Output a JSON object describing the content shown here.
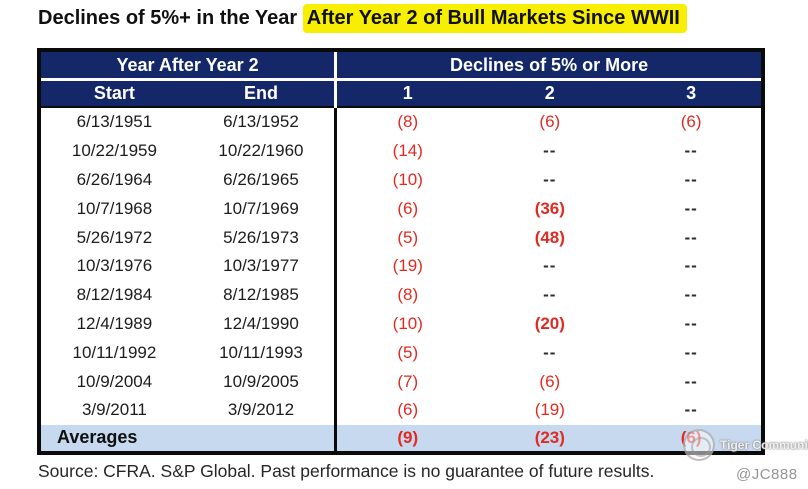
{
  "title": {
    "prefix": "Declines of 5%+ in the Year ",
    "highlight": "After Year 2 of Bull Markets Since WWII"
  },
  "chart_data": {
    "type": "table",
    "title": "Declines of 5%+ in the Year After Year 2 of Bull Markets Since WWII",
    "group_headers": [
      "Year After Year 2",
      "Declines of 5% or More"
    ],
    "columns": [
      "Start",
      "End",
      "1",
      "2",
      "3"
    ],
    "rows": [
      [
        "6/13/1951",
        "6/13/1952",
        "(8)",
        "(6)",
        "(6)"
      ],
      [
        "10/22/1959",
        "10/22/1960",
        "(14)",
        "--",
        "--"
      ],
      [
        "6/26/1964",
        "6/26/1965",
        "(10)",
        "--",
        "--"
      ],
      [
        "10/7/1968",
        "10/7/1969",
        "(6)",
        "(36)",
        "--"
      ],
      [
        "5/26/1972",
        "5/26/1973",
        "(5)",
        "(48)",
        "--"
      ],
      [
        "10/3/1976",
        "10/3/1977",
        "(19)",
        "--",
        "--"
      ],
      [
        "8/12/1984",
        "8/12/1985",
        "(8)",
        "--",
        "--"
      ],
      [
        "12/4/1989",
        "12/4/1990",
        "(10)",
        "(20)",
        "--"
      ],
      [
        "10/11/1992",
        "10/11/1993",
        "(5)",
        "--",
        "--"
      ],
      [
        "10/9/2004",
        "10/9/2005",
        "(7)",
        "(6)",
        "--"
      ],
      [
        "3/9/2011",
        "3/9/2012",
        "(6)",
        "(19)",
        "--"
      ]
    ],
    "bold_declines": [
      [
        false,
        false,
        false
      ],
      [
        false,
        false,
        false
      ],
      [
        false,
        false,
        false
      ],
      [
        false,
        true,
        false
      ],
      [
        false,
        true,
        false
      ],
      [
        false,
        false,
        false
      ],
      [
        false,
        false,
        false
      ],
      [
        false,
        true,
        false
      ],
      [
        false,
        false,
        false
      ],
      [
        false,
        false,
        false
      ],
      [
        false,
        false,
        false
      ]
    ],
    "averages_row": {
      "label": "Averages",
      "declines": [
        "(9)",
        "(23)",
        "(6)"
      ]
    }
  },
  "footer": {
    "source": "Source: CFRA. S&P Global. Past performance is no guarantee of future results.",
    "credit": "@JC888"
  },
  "watermark": {
    "label": "Tiger Community"
  },
  "colors": {
    "header_navy": "#142869",
    "decline_red": "#e02b22",
    "averages_row_bg": "#c7d9ef",
    "title_highlight": "#f8ee00"
  }
}
